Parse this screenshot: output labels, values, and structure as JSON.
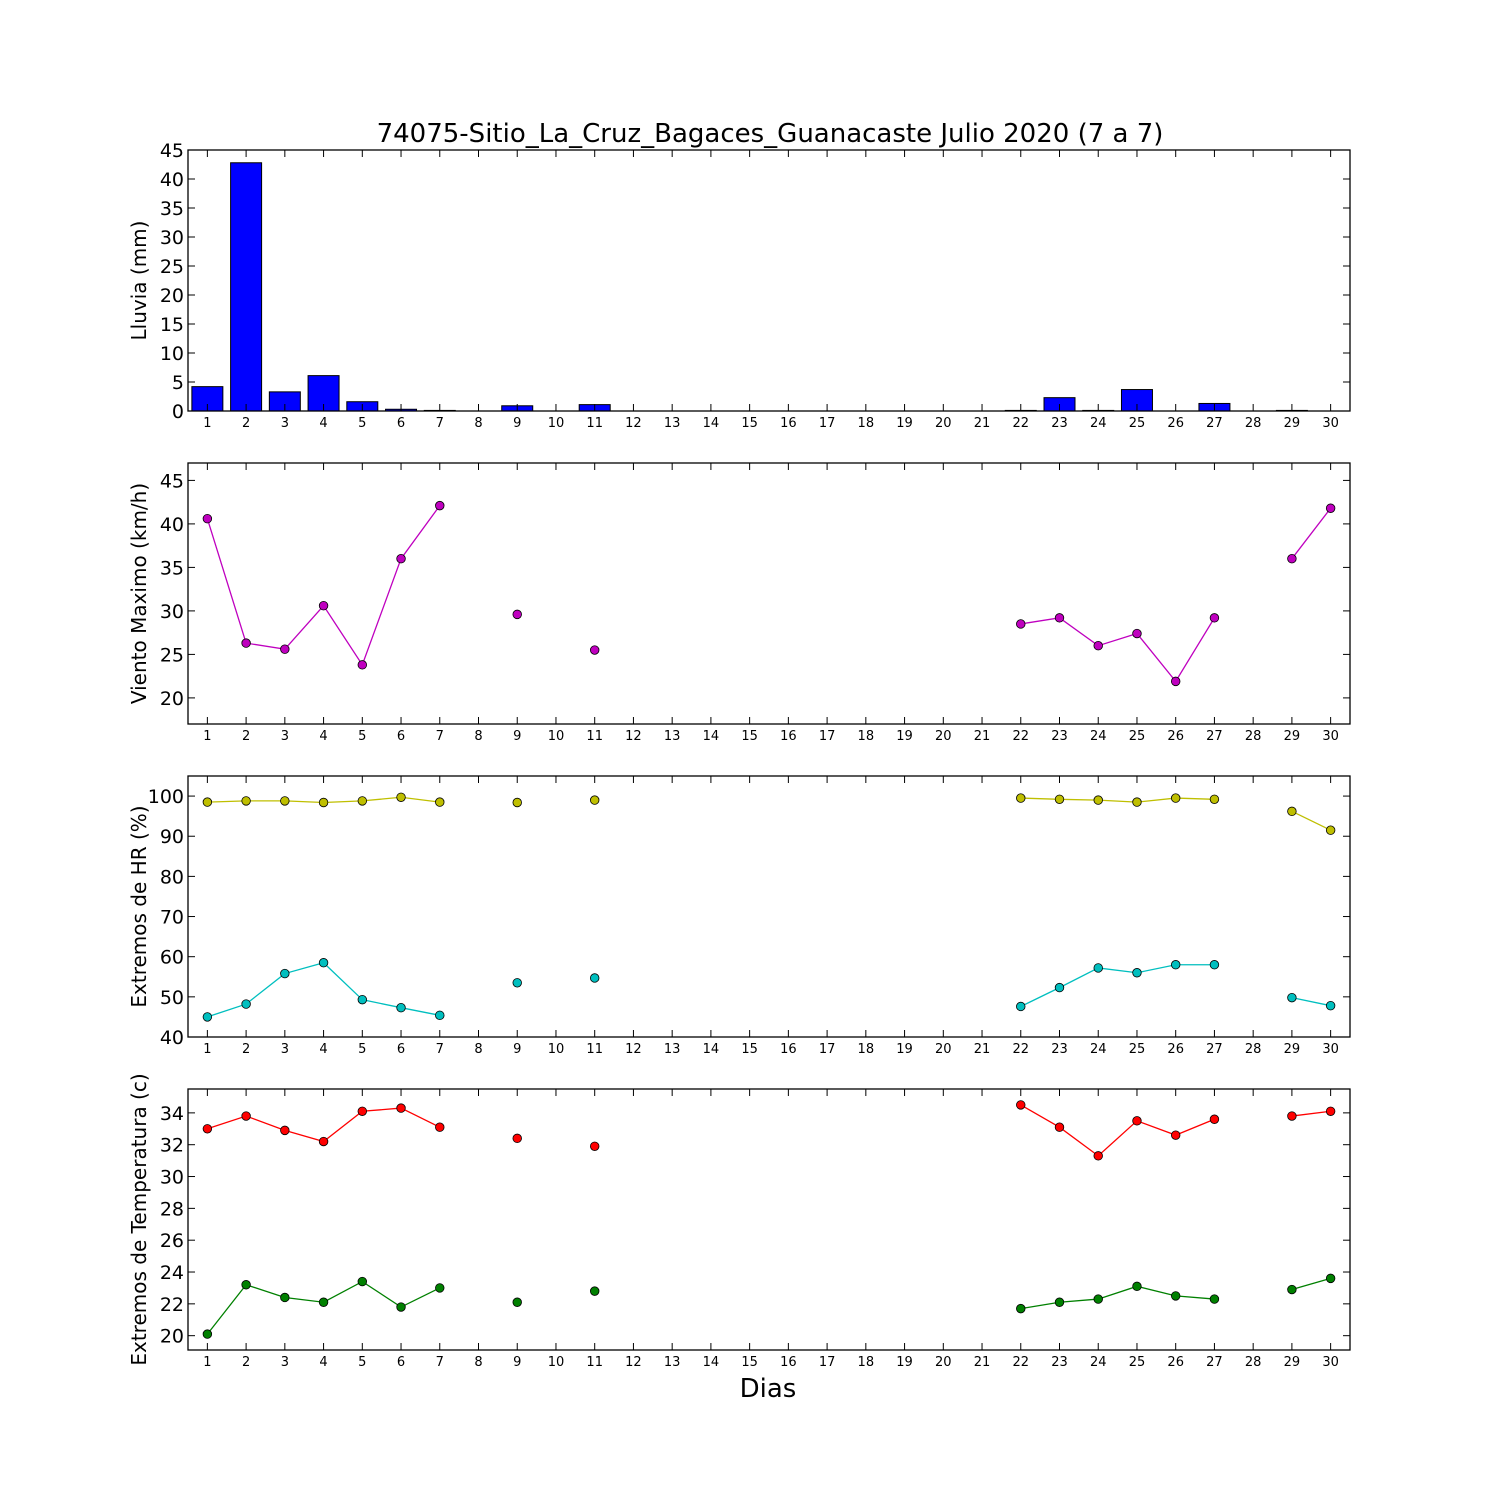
{
  "chart_data": [
    {
      "type": "bar",
      "title": "74075-Sitio_La_Cruz_Bagaces_Guanacaste Julio 2020  (7 a 7)",
      "ylabel": "Lluvia (mm)",
      "ylim": [
        0,
        45
      ],
      "yticks": [
        0,
        5,
        10,
        15,
        20,
        25,
        30,
        35,
        40,
        45
      ],
      "x": [
        1,
        2,
        3,
        4,
        5,
        6,
        7,
        8,
        9,
        10,
        11,
        12,
        13,
        14,
        15,
        16,
        17,
        18,
        19,
        20,
        21,
        22,
        23,
        24,
        25,
        26,
        27,
        28,
        29,
        30
      ],
      "xtick_labels": [
        "1",
        "2",
        "3",
        "4",
        "5",
        "6",
        "7",
        "8",
        "9",
        "10",
        "11",
        "12",
        "13",
        "14",
        "15",
        "16",
        "17",
        "18",
        "19",
        "20",
        "21",
        "22",
        "23",
        "24",
        "25",
        "26",
        "27",
        "28",
        "29",
        "30"
      ],
      "values": [
        4.2,
        42.8,
        3.3,
        6.1,
        1.6,
        0.3,
        0.1,
        0,
        0.9,
        0,
        1.1,
        0,
        0,
        0,
        0,
        0,
        0,
        0,
        0,
        0,
        0,
        0.1,
        2.3,
        0.1,
        3.7,
        0,
        1.3,
        0,
        0.1,
        0
      ],
      "color": "#0000ff"
    },
    {
      "type": "line",
      "ylabel": "Viento Maximo (km/h)",
      "ylim": [
        17,
        47
      ],
      "yticks": [
        20,
        25,
        30,
        35,
        40,
        45
      ],
      "x": [
        1,
        2,
        3,
        4,
        5,
        6,
        7,
        8,
        9,
        10,
        11,
        12,
        13,
        14,
        15,
        16,
        17,
        18,
        19,
        20,
        21,
        22,
        23,
        24,
        25,
        26,
        27,
        28,
        29,
        30
      ],
      "xtick_labels": [
        "1",
        "2",
        "3",
        "4",
        "5",
        "6",
        "7",
        "8",
        "9",
        "10",
        "11",
        "12",
        "13",
        "14",
        "15",
        "16",
        "17",
        "18",
        "19",
        "20",
        "21",
        "22",
        "23",
        "24",
        "25",
        "26",
        "27",
        "28",
        "29",
        "30"
      ],
      "series": [
        {
          "color": "#bf00bf",
          "values": [
            40.6,
            26.3,
            25.6,
            30.6,
            23.8,
            36.0,
            42.1,
            null,
            29.6,
            null,
            25.5,
            null,
            null,
            null,
            null,
            null,
            null,
            null,
            null,
            null,
            null,
            28.5,
            29.2,
            26.0,
            27.4,
            21.9,
            29.2,
            null,
            36.0,
            41.8
          ]
        }
      ]
    },
    {
      "type": "line",
      "ylabel": "Extremos de HR (%)",
      "ylim": [
        40,
        105
      ],
      "yticks": [
        40,
        50,
        60,
        70,
        80,
        90,
        100
      ],
      "x": [
        1,
        2,
        3,
        4,
        5,
        6,
        7,
        8,
        9,
        10,
        11,
        12,
        13,
        14,
        15,
        16,
        17,
        18,
        19,
        20,
        21,
        22,
        23,
        24,
        25,
        26,
        27,
        28,
        29,
        30
      ],
      "xtick_labels": [
        "1",
        "2",
        "3",
        "4",
        "5",
        "6",
        "7",
        "8",
        "9",
        "10",
        "11",
        "12",
        "13",
        "14",
        "15",
        "16",
        "17",
        "18",
        "19",
        "20",
        "21",
        "22",
        "23",
        "24",
        "25",
        "26",
        "27",
        "28",
        "29",
        "30"
      ],
      "series": [
        {
          "color": "#bfbf00",
          "values": [
            98.5,
            98.8,
            98.8,
            98.4,
            98.8,
            99.7,
            98.5,
            null,
            98.4,
            null,
            99.0,
            null,
            null,
            null,
            null,
            null,
            null,
            null,
            null,
            null,
            null,
            99.5,
            99.2,
            99.0,
            98.5,
            99.5,
            99.2,
            null,
            96.2,
            91.5
          ]
        },
        {
          "color": "#00bfbf",
          "values": [
            45.0,
            48.2,
            55.8,
            58.5,
            49.3,
            47.3,
            45.4,
            null,
            53.5,
            null,
            54.7,
            null,
            null,
            null,
            null,
            null,
            null,
            null,
            null,
            null,
            null,
            47.6,
            52.3,
            57.2,
            56.0,
            58.0,
            58.0,
            null,
            49.8,
            47.8
          ]
        }
      ]
    },
    {
      "type": "line",
      "ylabel": "Extremos de Temperatura (c)",
      "xlabel": "Dias",
      "ylim": [
        19.1,
        35.5
      ],
      "yticks": [
        20,
        22,
        24,
        26,
        28,
        30,
        32,
        34
      ],
      "x": [
        1,
        2,
        3,
        4,
        5,
        6,
        7,
        8,
        9,
        10,
        11,
        12,
        13,
        14,
        15,
        16,
        17,
        18,
        19,
        20,
        21,
        22,
        23,
        24,
        25,
        26,
        27,
        28,
        29,
        30
      ],
      "xtick_labels": [
        "1",
        "2",
        "3",
        "4",
        "5",
        "6",
        "7",
        "8",
        "9",
        "10",
        "11",
        "12",
        "13",
        "14",
        "15",
        "16",
        "17",
        "18",
        "19",
        "20",
        "21",
        "22",
        "23",
        "24",
        "25",
        "26",
        "27",
        "28",
        "29",
        "30"
      ],
      "series": [
        {
          "color": "#ff0000",
          "values": [
            33.0,
            33.8,
            32.9,
            32.2,
            34.1,
            34.3,
            33.1,
            null,
            32.4,
            null,
            31.9,
            null,
            null,
            null,
            null,
            null,
            null,
            null,
            null,
            null,
            null,
            34.5,
            33.1,
            31.3,
            33.5,
            32.6,
            33.6,
            null,
            33.8,
            34.1
          ]
        },
        {
          "color": "#008000",
          "values": [
            20.1,
            23.2,
            22.4,
            22.1,
            23.4,
            21.8,
            23.0,
            null,
            22.1,
            null,
            22.8,
            null,
            null,
            null,
            null,
            null,
            null,
            null,
            null,
            null,
            null,
            21.7,
            22.1,
            22.3,
            23.1,
            22.5,
            22.3,
            null,
            22.9,
            23.6
          ]
        }
      ]
    }
  ]
}
